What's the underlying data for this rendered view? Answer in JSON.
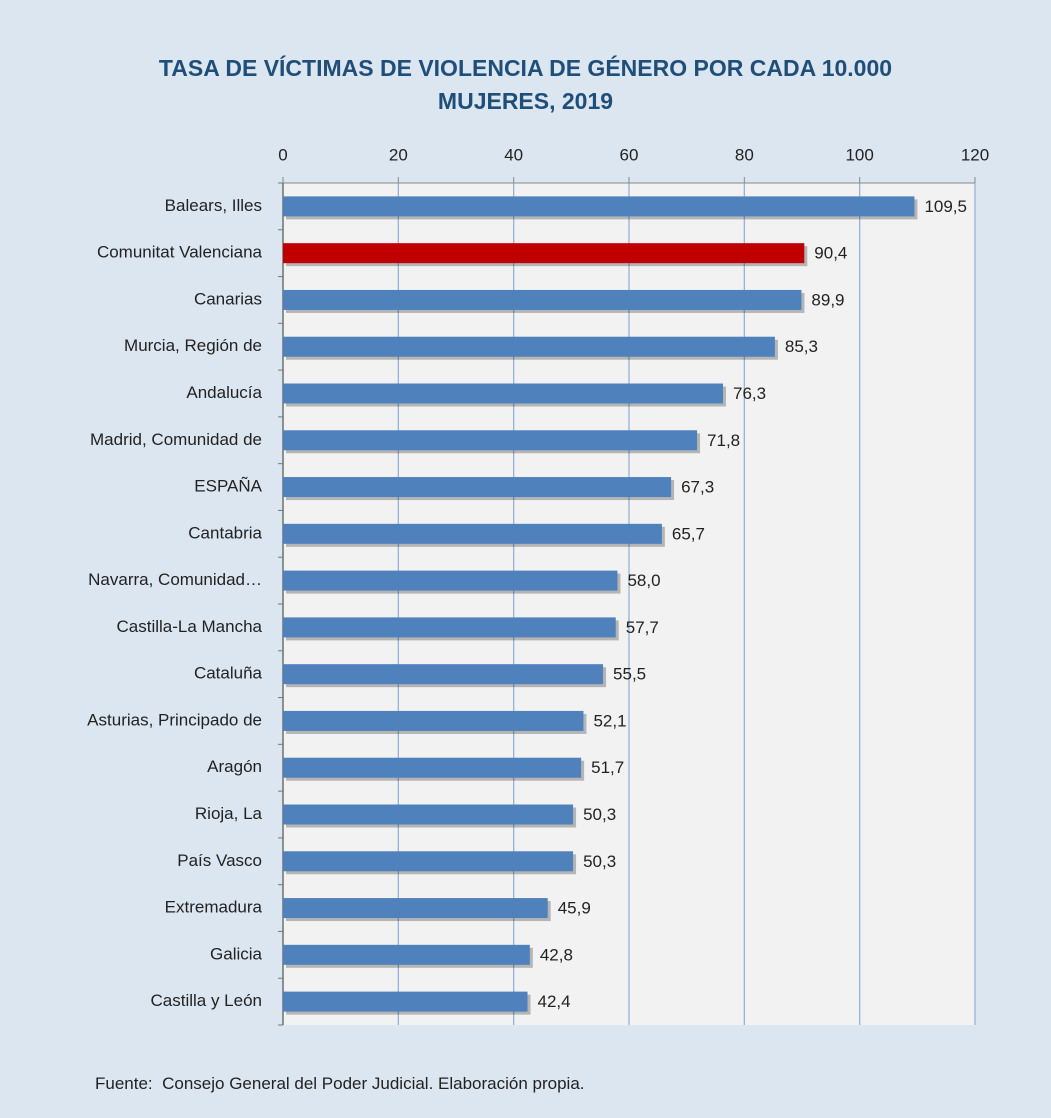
{
  "chart_data": {
    "type": "barh",
    "title": "TASA DE VÍCTIMAS DE VIOLENCIA DE GÉNERO POR CADA 10.000 MUJERES, 2019",
    "source": "Fuente:  Consejo General del Poder Judicial. Elaboración propia.",
    "categories": [
      "Balears, Illes",
      "Comunitat Valenciana",
      "Canarias",
      "Murcia, Región de",
      "Andalucía",
      "Madrid, Comunidad de",
      "ESPAÑA",
      "Cantabria",
      "Navarra, Comunidad…",
      "Castilla-La Mancha",
      "Cataluña",
      "Asturias, Principado de",
      "Aragón",
      "Rioja, La",
      "País Vasco",
      "Extremadura",
      "Galicia",
      "Castilla y León"
    ],
    "values": [
      109.5,
      90.4,
      89.9,
      85.3,
      76.3,
      71.8,
      67.3,
      65.7,
      58.0,
      57.7,
      55.5,
      52.1,
      51.7,
      50.3,
      50.3,
      45.9,
      42.8,
      42.4
    ],
    "value_labels": [
      "109,5",
      "90,4",
      "89,9",
      "85,3",
      "76,3",
      "71,8",
      "67,3",
      "65,7",
      "58,0",
      "57,7",
      "55,5",
      "52,1",
      "51,7",
      "50,3",
      "50,3",
      "45,9",
      "42,8",
      "42,4"
    ],
    "colors": [
      "#4f81bd",
      "#c00000",
      "#4f81bd",
      "#4f81bd",
      "#4f81bd",
      "#4f81bd",
      "#4f81bd",
      "#4f81bd",
      "#4f81bd",
      "#4f81bd",
      "#4f81bd",
      "#4f81bd",
      "#4f81bd",
      "#4f81bd",
      "#4f81bd",
      "#4f81bd",
      "#4f81bd",
      "#4f81bd"
    ],
    "xlim": [
      0,
      120
    ],
    "xticks": [
      0,
      20,
      40,
      60,
      80,
      100,
      120
    ],
    "grid": true
  }
}
